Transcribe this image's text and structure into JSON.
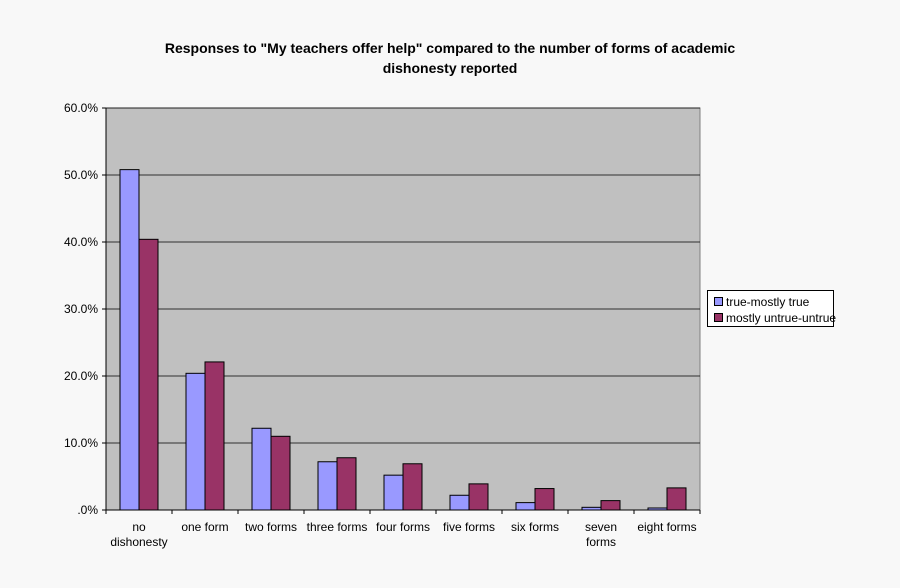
{
  "chart_data": {
    "type": "bar",
    "title": "Responses to \"My teachers offer help\" compared to the number of forms of academic\ndishonesty reported",
    "categories": [
      "no\ndishonesty",
      "one form",
      "two forms",
      "three forms",
      "four forms",
      "five forms",
      "six forms",
      "seven\nforms",
      "eight forms"
    ],
    "series": [
      {
        "name": "true-mostly true",
        "color": "#9999ff",
        "values": [
          50.8,
          20.4,
          12.2,
          7.2,
          5.2,
          2.2,
          1.1,
          0.4,
          0.3
        ]
      },
      {
        "name": "mostly untrue-untrue",
        "color": "#993366",
        "values": [
          40.4,
          22.1,
          11.0,
          7.8,
          6.9,
          3.9,
          3.2,
          1.4,
          3.3
        ]
      }
    ],
    "ylim": [
      0,
      60
    ],
    "yticks": [
      0,
      10,
      20,
      30,
      40,
      50,
      60
    ],
    "ytick_labels": [
      ".0%",
      "10.0%",
      "20.0%",
      "30.0%",
      "40.0%",
      "50.0%",
      "60.0%"
    ],
    "xlabel": "",
    "ylabel": "",
    "grid": true,
    "legend_position": "right",
    "plot_background": "#c0c0c0"
  }
}
